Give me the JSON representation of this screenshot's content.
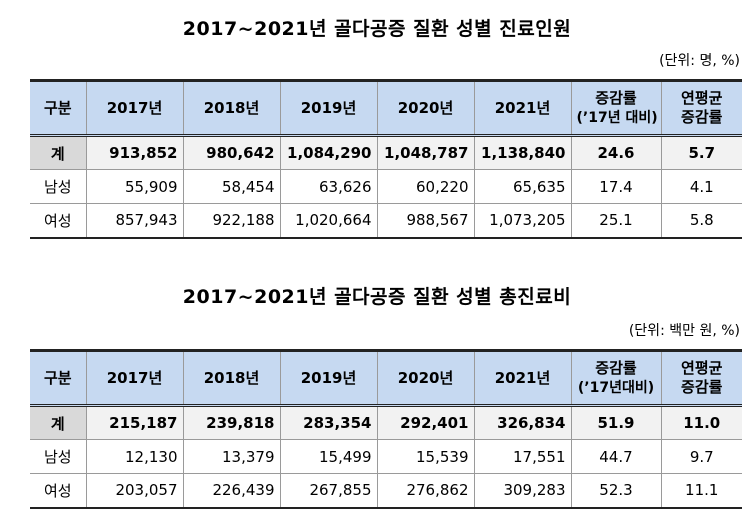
{
  "table1": {
    "title": "2017~2021년 골다공증 질환 성별 진료인원",
    "unit": "(단위: 명, %)",
    "headers": [
      "구분",
      "2017년",
      "2018년",
      "2019년",
      "2020년",
      "2021년",
      "증감률",
      "(’17년 대비)",
      "연평균",
      "증감률"
    ],
    "rows": [
      [
        "계",
        "913,852",
        "980,642",
        "1,084,290",
        "1,048,787",
        "1,138,840",
        "24.6",
        "5.7"
      ],
      [
        "남성",
        "55,909",
        "58,454",
        "63,626",
        "60,220",
        "65,635",
        "17.4",
        "4.1"
      ],
      [
        "여성",
        "857,943",
        "922,188",
        "1,020,664",
        "988,567",
        "1,073,205",
        "25.1",
        "5.8"
      ]
    ]
  },
  "table2": {
    "title": "2017~2021년 골다공증 질환 성별 총진료비",
    "unit": "(단위: 백만 원, %)",
    "headers": [
      "구분",
      "2017년",
      "2018년",
      "2019년",
      "2020년",
      "2021년",
      "증감률",
      "(’17년대비)",
      "연평균",
      "증감률"
    ],
    "rows": [
      [
        "계",
        "215,187",
        "239,818",
        "283,354",
        "292,401",
        "326,834",
        "51.9",
        "11.0"
      ],
      [
        "남성",
        "12,130",
        "13,379",
        "15,499",
        "15,539",
        "17,551",
        "44.7",
        "9.7"
      ],
      [
        "여성",
        "203,057",
        "226,439",
        "267,855",
        "276,862",
        "309,283",
        "52.3",
        "11.1"
      ]
    ]
  }
}
